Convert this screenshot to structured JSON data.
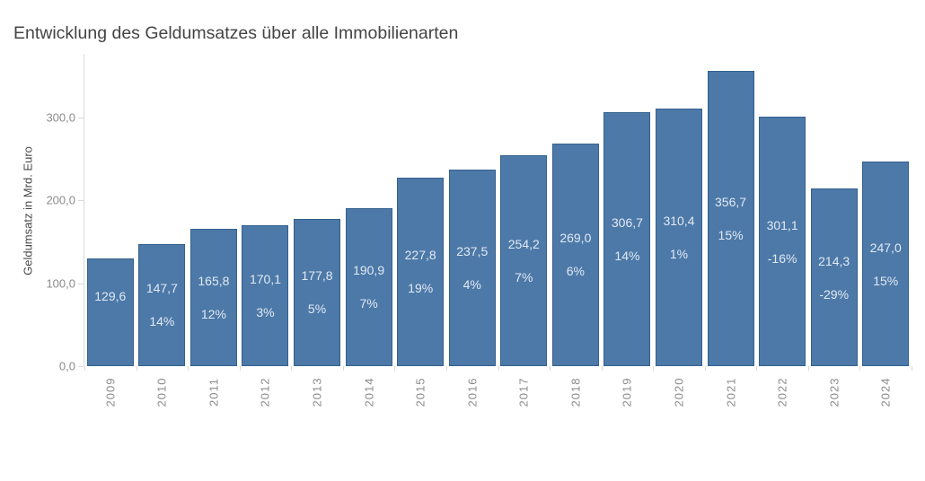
{
  "title": "Entwicklung des Geldumsatzes über alle Immobilienarten",
  "chart_data": {
    "type": "bar",
    "title": "Entwicklung des Geldumsatzes über alle Immobilienarten",
    "xlabel": "",
    "ylabel": "Geldumsatz in Mrd. Euro",
    "categories": [
      "2009",
      "2010",
      "2011",
      "2012",
      "2013",
      "2014",
      "2015",
      "2016",
      "2017",
      "2018",
      "2019",
      "2020",
      "2021",
      "2022",
      "2023",
      "2024"
    ],
    "values": [
      129.6,
      147.7,
      165.8,
      170.1,
      177.8,
      190.9,
      227.8,
      237.5,
      254.2,
      269.0,
      306.7,
      310.4,
      356.7,
      301.1,
      214.3,
      247.0
    ],
    "value_labels": [
      "129,6",
      "147,7",
      "165,8",
      "170,1",
      "177,8",
      "190,9",
      "227,8",
      "237,5",
      "254,2",
      "269,0",
      "306,7",
      "310,4",
      "356,7",
      "301,1",
      "214,3",
      "247,0"
    ],
    "pct_change_labels": [
      "",
      "14%",
      "12%",
      "3%",
      "5%",
      "7%",
      "19%",
      "4%",
      "7%",
      "6%",
      "14%",
      "1%",
      "15%",
      "-16%",
      "-29%",
      "15%"
    ],
    "ylim": [
      0,
      377
    ],
    "yticks": [
      0,
      100,
      200,
      300
    ],
    "ytick_labels": [
      "0,0",
      "100,0",
      "200,0",
      "300,0"
    ],
    "grid": false,
    "legend_position": "none",
    "colors": {
      "bar_fill": "#4d79a8",
      "bar_border": "#33608e",
      "bar_label": "#e1e9f3",
      "axis_line": "#d9d9d9",
      "tick_label": "#8c8c8c",
      "title_text": "#444444",
      "axis_title_text": "#4a4a4a"
    }
  }
}
